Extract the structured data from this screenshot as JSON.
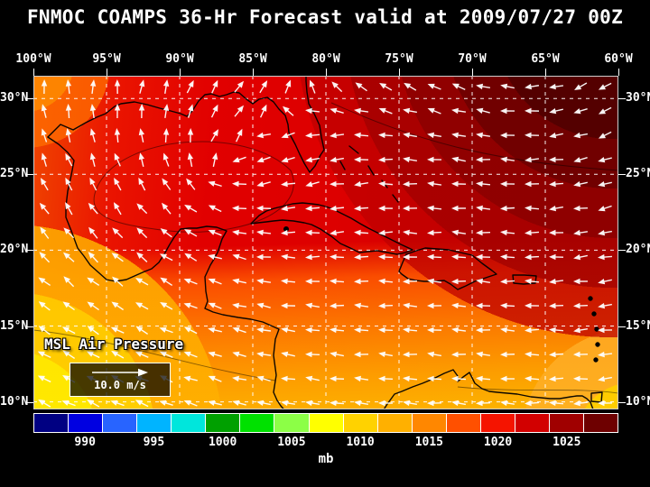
{
  "title": "FNMOC COAMPS 36-Hr Forecast valid at 2009/07/27 00Z",
  "axes": {
    "lon_labels": [
      "100°W",
      "95°W",
      "90°W",
      "85°W",
      "80°W",
      "75°W",
      "70°W",
      "65°W",
      "60°W"
    ],
    "lat_labels": [
      "30°N",
      "25°N",
      "20°N",
      "15°N",
      "10°N"
    ]
  },
  "overlay": {
    "field_label": "MSL Air Pressure",
    "wind_scale_label": "10.0 m/s"
  },
  "colorbar": {
    "units": "mb",
    "tick_labels": [
      "990",
      "995",
      "1000",
      "1005",
      "1010",
      "1015",
      "1020",
      "1025"
    ],
    "colors": [
      "#000082",
      "#0000e1",
      "#2864ff",
      "#00b4ff",
      "#00e6dc",
      "#00a000",
      "#00e100",
      "#8cff46",
      "#ffff00",
      "#ffd200",
      "#ffb000",
      "#ff8700",
      "#ff5000",
      "#f51400",
      "#d20000",
      "#a00000",
      "#6e0000"
    ]
  },
  "chart_data": {
    "type": "heatmap",
    "subtype": "filled-contour weather map with wind vectors",
    "title": "FNMOC COAMPS 36-Hr Forecast valid at 2009/07/27 00Z",
    "model": "FNMOC COAMPS",
    "forecast_hour": 36,
    "valid_time": "2009/07/27 00Z",
    "variable": "MSL Air Pressure",
    "units": "mb",
    "region": {
      "lon_deg_west": [
        100,
        60
      ],
      "lat_deg_north": [
        10,
        30
      ]
    },
    "x_tick_labels": [
      "100°W",
      "95°W",
      "90°W",
      "85°W",
      "80°W",
      "75°W",
      "70°W",
      "65°W",
      "60°W"
    ],
    "y_tick_labels": [
      "30°N",
      "25°N",
      "20°N",
      "15°N",
      "10°N"
    ],
    "colorbar_levels_mb": [
      987.5,
      990,
      992.5,
      995,
      997.5,
      1000,
      1002.5,
      1005,
      1007.5,
      1010,
      1012.5,
      1015,
      1017.5,
      1020,
      1022.5,
      1025,
      1027.5,
      1030
    ],
    "colorbar_tick_labels": [
      "990",
      "995",
      "1000",
      "1005",
      "1010",
      "1015",
      "1020",
      "1025"
    ],
    "wind_reference_vector": "10.0 m/s",
    "approx_field_values_mb": {
      "northwest_gulf_of_mexico": 1016,
      "central_gulf_of_mexico": 1016,
      "florida": 1017,
      "bahamas_nw_atlantic": 1019,
      "atlantic_60W_30N_high": 1025,
      "western_caribbean": 1013,
      "eastern_caribbean": 1012,
      "bay_of_campeche": 1012,
      "eastern_pacific_sw_corner": 1008,
      "venezuela_coast": 1010
    },
    "wind_pattern": "Anticyclonic (clockwise) flow around subtropical high to the northeast; easterly trade winds across the Caribbean and southern Gulf",
    "legend_position": "bottom colorbar",
    "grid": "white dashed lat/lon lines every 5 degrees"
  }
}
